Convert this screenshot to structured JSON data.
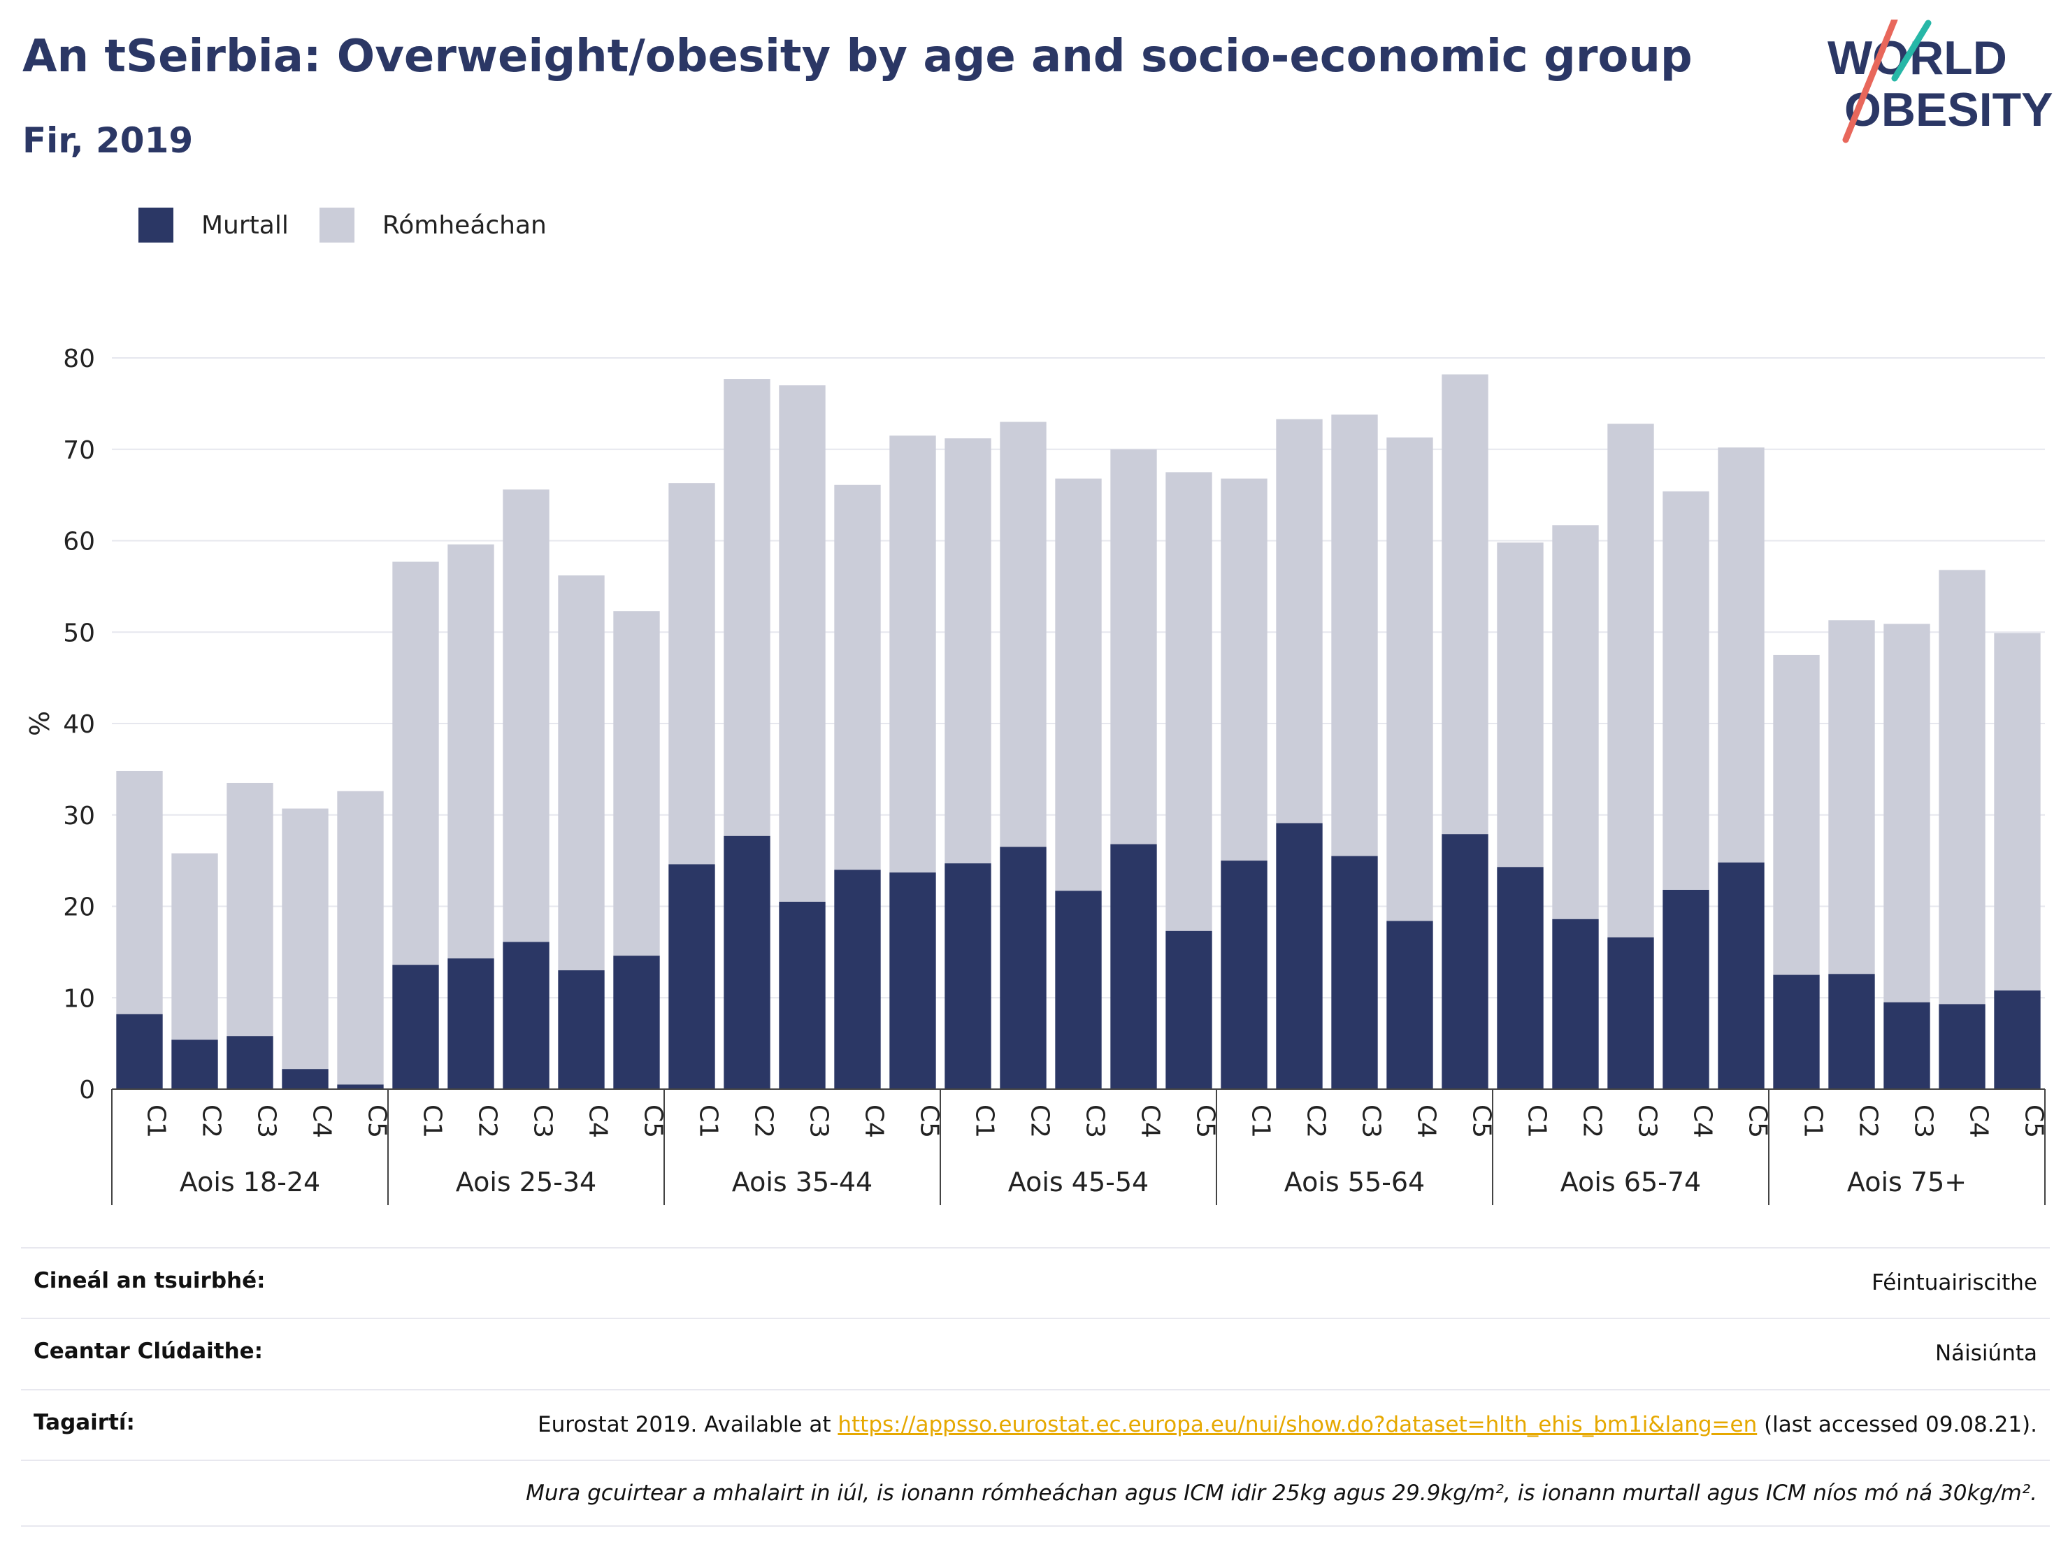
{
  "title": "An tSeirbia: Overweight/obesity by age and socio-economic group",
  "subtitle": "Fir, 2019",
  "logo": {
    "line1": "WORLD",
    "line2": "OBESITY"
  },
  "colors": {
    "obesity": "#2b3765",
    "overweight": "#cbcdd9",
    "grid": "#e6e7ee",
    "text": "#222222",
    "link": "#e6a800"
  },
  "chart_data": {
    "type": "bar",
    "stacked": true,
    "ylabel": "%",
    "ylim": [
      0,
      80
    ],
    "yticks": [
      0,
      10,
      20,
      30,
      40,
      50,
      60,
      70,
      80
    ],
    "grid": true,
    "legend_position": "top-left",
    "groups": [
      "Aois 18-24",
      "Aois 25-34",
      "Aois 35-44",
      "Aois 45-54",
      "Aois 55-64",
      "Aois 65-74",
      "Aois 75+"
    ],
    "subcategories": [
      "C1",
      "C2",
      "C3",
      "C4",
      "C5"
    ],
    "series": [
      {
        "name": "Murtall",
        "values": [
          8.2,
          5.4,
          5.8,
          2.2,
          0.5,
          13.6,
          14.3,
          16.1,
          13.0,
          14.6,
          24.6,
          27.7,
          20.5,
          24.0,
          23.7,
          24.7,
          26.5,
          21.7,
          26.8,
          17.3,
          25.0,
          29.1,
          25.5,
          18.4,
          27.9,
          24.3,
          18.6,
          16.6,
          21.8,
          24.8,
          12.5,
          12.6,
          9.5,
          9.3,
          10.8
        ]
      },
      {
        "name": "Rómheáchan",
        "values": [
          26.6,
          20.4,
          27.7,
          28.5,
          32.1,
          44.1,
          45.3,
          49.5,
          43.2,
          37.7,
          41.7,
          50.0,
          56.5,
          42.1,
          47.8,
          46.5,
          46.5,
          45.1,
          43.2,
          50.2,
          41.8,
          44.2,
          48.3,
          52.9,
          50.3,
          35.5,
          43.1,
          56.2,
          43.6,
          45.4,
          35.0,
          38.7,
          41.4,
          47.5,
          39.1
        ]
      }
    ]
  },
  "info": {
    "survey_label": "Cineál an tsuirbhé:",
    "survey_value": "Féintuairiscithe",
    "area_label": "Ceantar Clúdaithe:",
    "area_value": "Náisiúnta",
    "refs_label": "Tagairtí:",
    "refs_before": "Eurostat 2019. Available at ",
    "refs_link": "https://appsso.eurostat.ec.europa.eu/nui/show.do?dataset=hlth_ehis_bm1i&lang=en",
    "refs_after": " (last accessed 09.08.21).",
    "note": "Mura gcuirtear a mhalairt in iúl, is ionann rómheáchan agus ICM idir 25kg agus 29.9kg/m², is ionann murtall agus ICM níos mó ná 30kg/m²."
  }
}
